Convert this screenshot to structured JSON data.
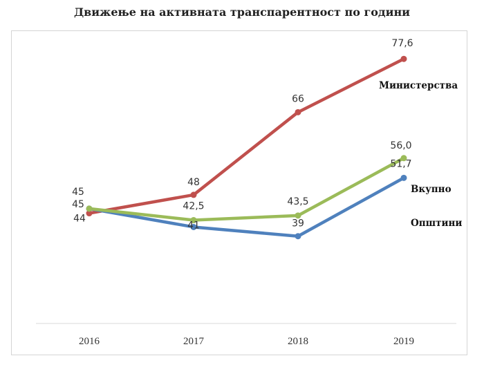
{
  "chart_data": {
    "type": "line",
    "title": "Движење на активната транспарентност по години",
    "xlabel": "",
    "ylabel": "",
    "categories": [
      "2016",
      "2017",
      "2018",
      "2019"
    ],
    "ylim": [
      20,
      82
    ],
    "grid": false,
    "series": [
      {
        "name": "Министерства",
        "color": "#c0504d",
        "values": [
          44,
          48,
          66,
          77.6
        ],
        "labels": [
          "44",
          "48",
          "66",
          "77,6"
        ]
      },
      {
        "name": "Вкупно",
        "color": "#9bbb59",
        "values": [
          45,
          42.5,
          43.5,
          56.0
        ],
        "labels": [
          "45",
          "42,5",
          "43,5",
          "56,0"
        ]
      },
      {
        "name": "Општини",
        "color": "#4f81bd",
        "values": [
          45,
          41,
          39,
          51.7
        ],
        "labels": [
          "45",
          "41",
          "39",
          "51,7"
        ]
      }
    ]
  }
}
